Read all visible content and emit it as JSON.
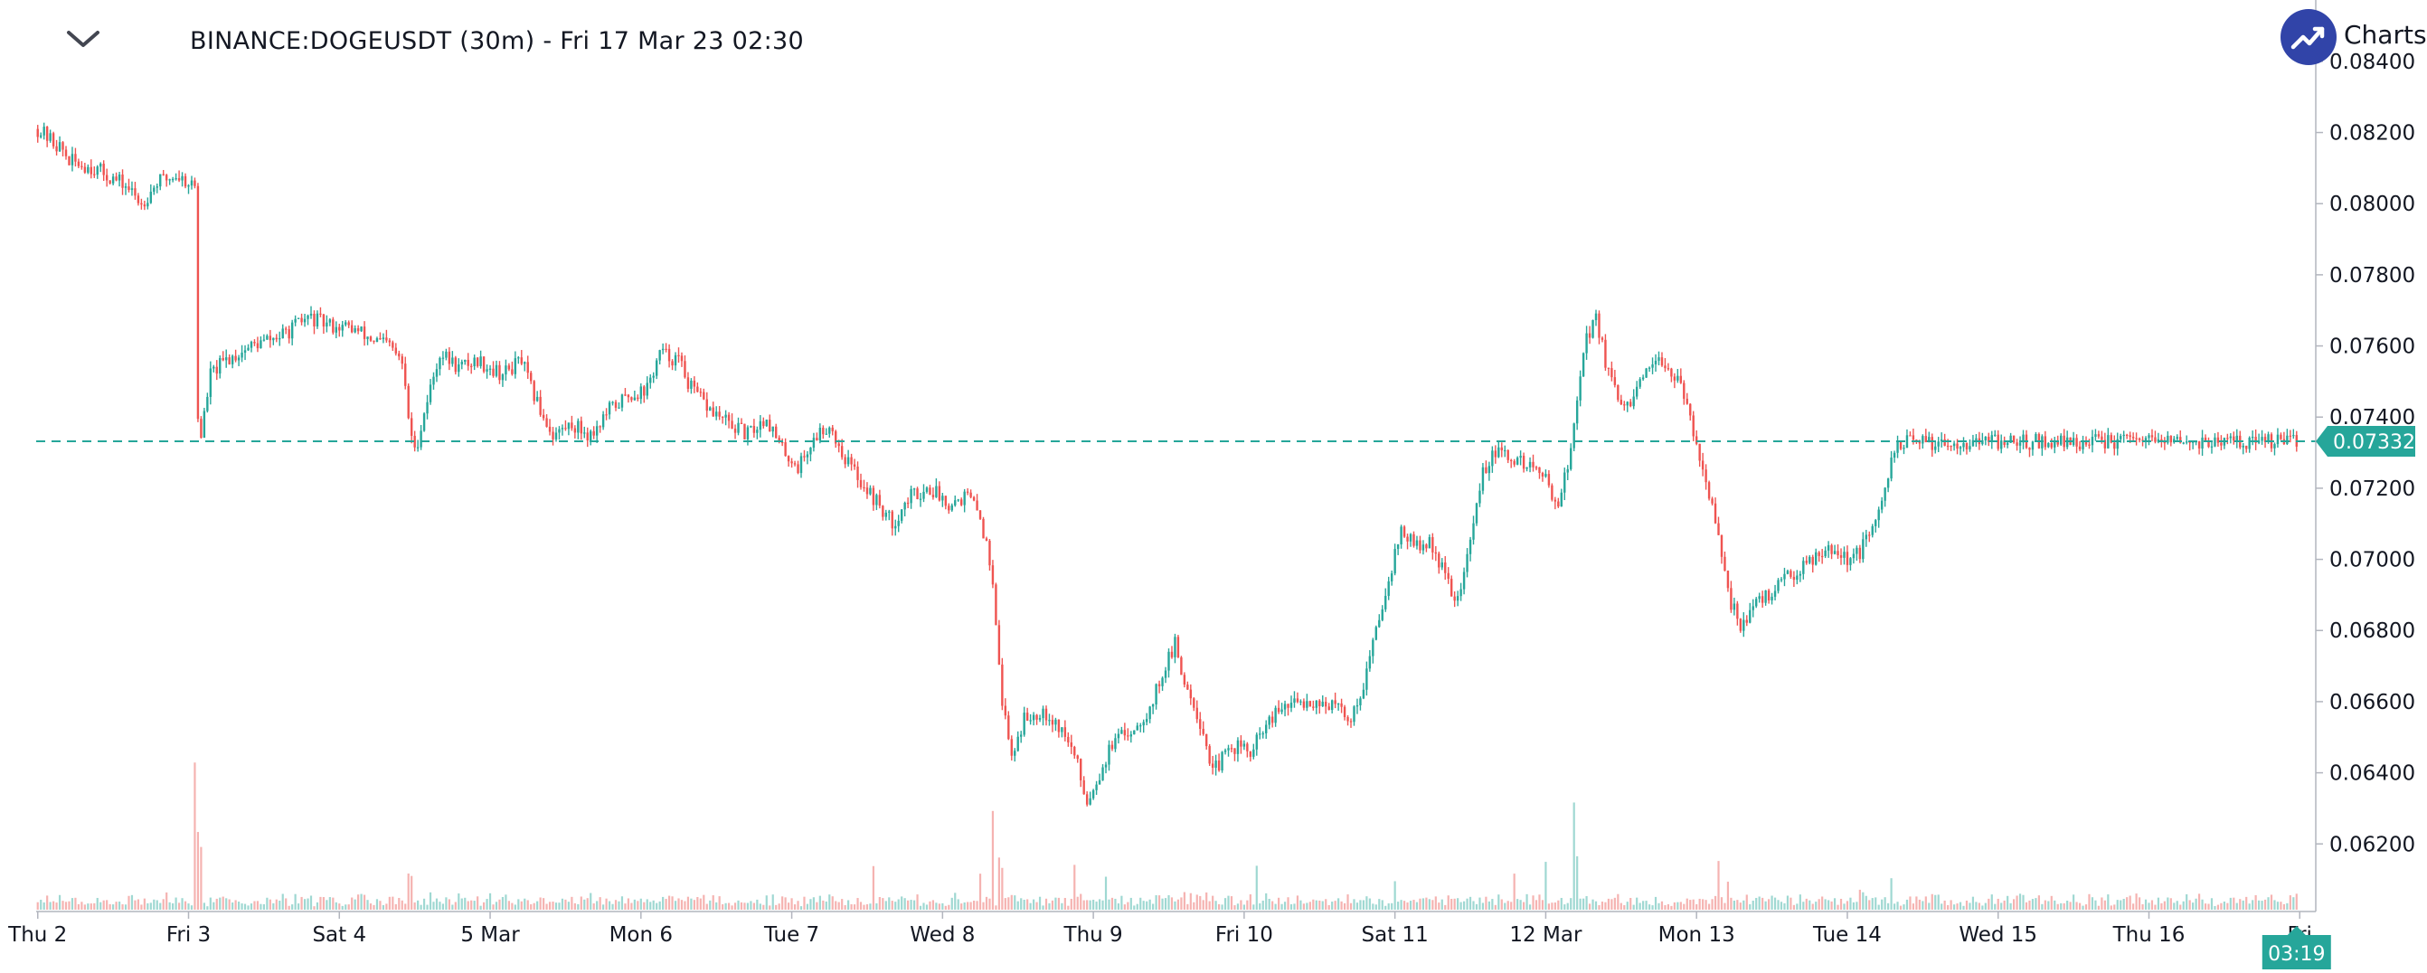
{
  "header": {
    "title": "BINANCE:DOGEUSDT (30m) - Fri 17 Mar 23 02:30",
    "collapse_icon": "chevron-down-icon",
    "logo_icon": "tradingview-logo-icon",
    "logo_text": "Charts p"
  },
  "colors": {
    "up": "#26a69a",
    "down": "#ef5350",
    "up_volume": "#9fd8d2",
    "down_volume": "#f5b3b1",
    "price_line": "#26a69a",
    "axis_text": "#131722",
    "logo": "#3144a8"
  },
  "chart_data": {
    "type": "candlestick",
    "symbol": "BINANCE:DOGEUSDT",
    "interval": "30m",
    "title": "BINANCE:DOGEUSDT (30m) - Fri 17 Mar 23 02:30",
    "ylim": [
      0.0601,
      0.0842
    ],
    "y_ticks": [
      "0.08400",
      "0.08200",
      "0.08000",
      "0.07800",
      "0.07600",
      "0.07400",
      "0.07200",
      "0.07000",
      "0.06800",
      "0.06600",
      "0.06400",
      "0.06200"
    ],
    "x_ticks": [
      "Thu 2",
      "Fri 3",
      "Sat 4",
      "5 Mar",
      "Mon 6",
      "Tue 7",
      "Wed 8",
      "Thu 9",
      "Fri 10",
      "Sat 11",
      "12 Mar",
      "Mon 13",
      "Tue 14",
      "Wed 15",
      "Thu 16",
      "Fri"
    ],
    "last_price": "0.07332",
    "last_price_value": 0.07332,
    "countdown": "03:19",
    "anchors": [
      [
        0,
        0.0821
      ],
      [
        4,
        0.0818
      ],
      [
        8,
        0.0815
      ],
      [
        10,
        0.0812
      ],
      [
        18,
        0.081
      ],
      [
        28,
        0.0805
      ],
      [
        33,
        0.08
      ],
      [
        38,
        0.0806
      ],
      [
        44,
        0.0808
      ],
      [
        50,
        0.0805
      ],
      [
        51,
        0.074
      ],
      [
        52,
        0.0735
      ],
      [
        55,
        0.0752
      ],
      [
        60,
        0.0756
      ],
      [
        68,
        0.076
      ],
      [
        78,
        0.0763
      ],
      [
        86,
        0.0768
      ],
      [
        92,
        0.0766
      ],
      [
        100,
        0.0765
      ],
      [
        106,
        0.0762
      ],
      [
        112,
        0.076
      ],
      [
        116,
        0.0755
      ],
      [
        118,
        0.074
      ],
      [
        120,
        0.073
      ],
      [
        124,
        0.0745
      ],
      [
        128,
        0.0758
      ],
      [
        134,
        0.0754
      ],
      [
        140,
        0.0756
      ],
      [
        148,
        0.0752
      ],
      [
        154,
        0.0756
      ],
      [
        157,
        0.0748
      ],
      [
        160,
        0.0742
      ],
      [
        164,
        0.0735
      ],
      [
        170,
        0.0738
      ],
      [
        176,
        0.0735
      ],
      [
        182,
        0.0742
      ],
      [
        188,
        0.0746
      ],
      [
        194,
        0.0748
      ],
      [
        198,
        0.0758
      ],
      [
        204,
        0.0756
      ],
      [
        208,
        0.0748
      ],
      [
        214,
        0.0742
      ],
      [
        220,
        0.0738
      ],
      [
        226,
        0.0735
      ],
      [
        232,
        0.074
      ],
      [
        236,
        0.0732
      ],
      [
        242,
        0.0726
      ],
      [
        248,
        0.0735
      ],
      [
        252,
        0.0738
      ],
      [
        256,
        0.073
      ],
      [
        262,
        0.0722
      ],
      [
        268,
        0.0715
      ],
      [
        272,
        0.071
      ],
      [
        278,
        0.0718
      ],
      [
        284,
        0.072
      ],
      [
        290,
        0.0716
      ],
      [
        296,
        0.0718
      ],
      [
        300,
        0.0712
      ],
      [
        304,
        0.0695
      ],
      [
        307,
        0.066
      ],
      [
        310,
        0.0645
      ],
      [
        314,
        0.0655
      ],
      [
        320,
        0.0658
      ],
      [
        326,
        0.0652
      ],
      [
        330,
        0.0645
      ],
      [
        334,
        0.0632
      ],
      [
        338,
        0.064
      ],
      [
        342,
        0.0648
      ],
      [
        348,
        0.0652
      ],
      [
        354,
        0.0658
      ],
      [
        358,
        0.0668
      ],
      [
        362,
        0.0676
      ],
      [
        364,
        0.0668
      ],
      [
        368,
        0.066
      ],
      [
        372,
        0.0648
      ],
      [
        374,
        0.064
      ],
      [
        378,
        0.0645
      ],
      [
        382,
        0.0648
      ],
      [
        386,
        0.0645
      ],
      [
        390,
        0.0652
      ],
      [
        396,
        0.0658
      ],
      [
        402,
        0.066
      ],
      [
        408,
        0.066
      ],
      [
        414,
        0.0658
      ],
      [
        418,
        0.0655
      ],
      [
        422,
        0.0665
      ],
      [
        426,
        0.068
      ],
      [
        430,
        0.0695
      ],
      [
        434,
        0.0708
      ],
      [
        438,
        0.0704
      ],
      [
        444,
        0.0704
      ],
      [
        448,
        0.0695
      ],
      [
        452,
        0.0688
      ],
      [
        456,
        0.0705
      ],
      [
        460,
        0.0725
      ],
      [
        464,
        0.073
      ],
      [
        470,
        0.0728
      ],
      [
        476,
        0.0726
      ],
      [
        480,
        0.0722
      ],
      [
        484,
        0.0716
      ],
      [
        488,
        0.073
      ],
      [
        490,
        0.0745
      ],
      [
        492,
        0.076
      ],
      [
        496,
        0.0768
      ],
      [
        500,
        0.0752
      ],
      [
        504,
        0.0742
      ],
      [
        508,
        0.0745
      ],
      [
        512,
        0.0752
      ],
      [
        518,
        0.0756
      ],
      [
        522,
        0.075
      ],
      [
        526,
        0.074
      ],
      [
        530,
        0.0726
      ],
      [
        534,
        0.071
      ],
      [
        538,
        0.069
      ],
      [
        542,
        0.0682
      ],
      [
        548,
        0.0688
      ],
      [
        556,
        0.0694
      ],
      [
        564,
        0.07
      ],
      [
        570,
        0.0704
      ],
      [
        576,
        0.07
      ],
      [
        580,
        0.0702
      ],
      [
        584,
        0.0708
      ],
      [
        588,
        0.0718
      ],
      [
        590,
        0.0728
      ],
      [
        592,
        0.0733
      ]
    ],
    "x_tick_positions": [
      0,
      48,
      96,
      144,
      192,
      240,
      288,
      336,
      384,
      432,
      480,
      528,
      576,
      624,
      672,
      720
    ]
  }
}
